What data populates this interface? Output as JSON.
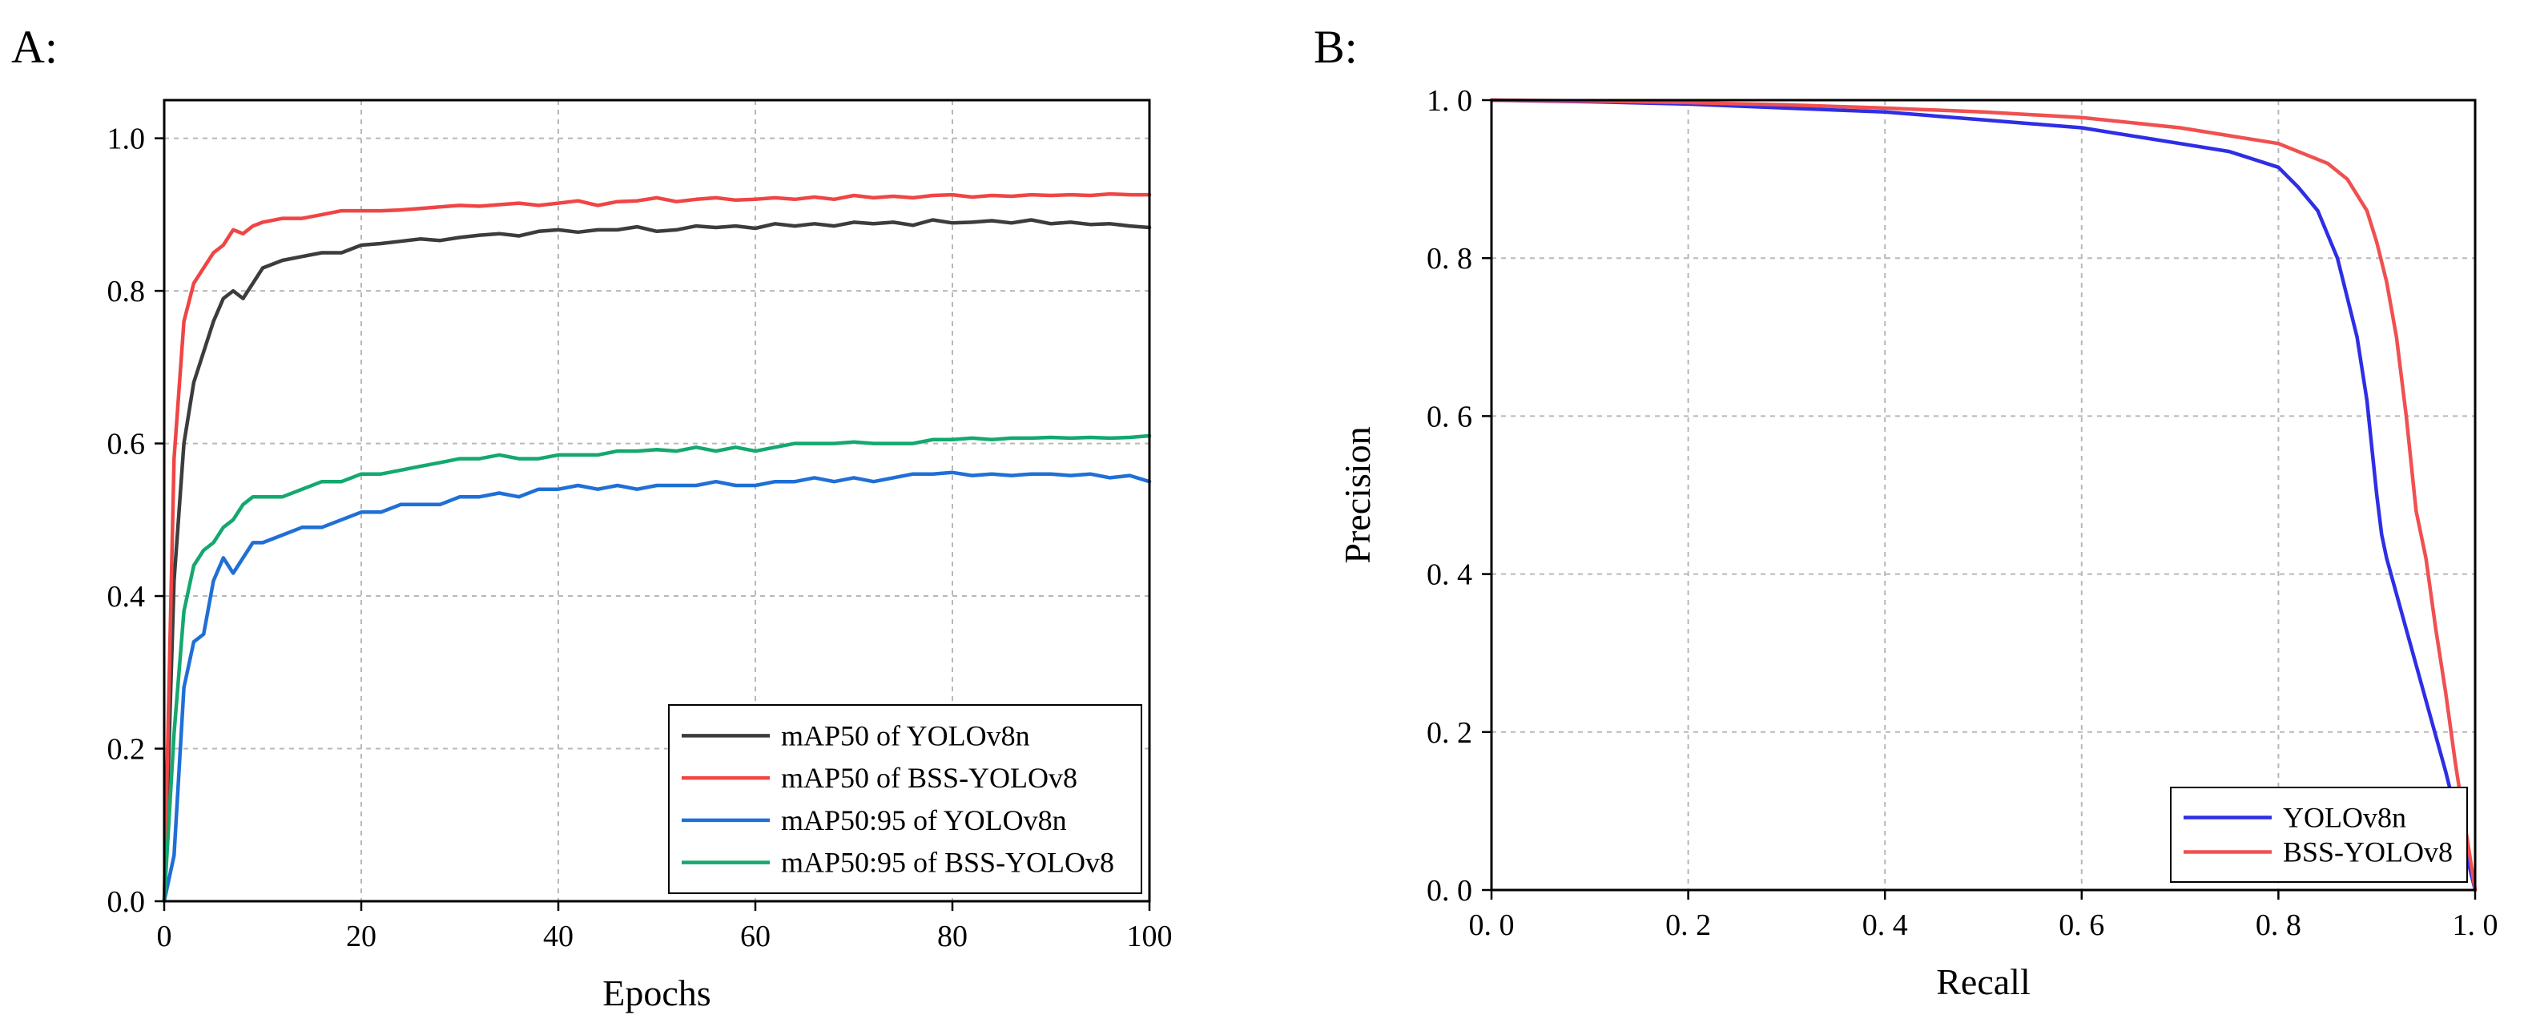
{
  "chart_data": [
    {
      "panel": "A:",
      "type": "line",
      "xlabel": "Epochs",
      "ylabel": "",
      "xlim": [
        0,
        100
      ],
      "ylim": [
        0,
        1.05
      ],
      "xticks": [
        0,
        20,
        40,
        60,
        80,
        100
      ],
      "yticks": [
        0.0,
        0.2,
        0.4,
        0.6,
        0.8,
        1.0
      ],
      "xtick_labels": [
        "0",
        "20",
        "40",
        "60",
        "80",
        "100"
      ],
      "ytick_labels": [
        "0.0",
        "0.2",
        "0.4",
        "0.6",
        "0.8",
        "1.0"
      ],
      "grid": true,
      "legend_position": "bottom-right",
      "series": [
        {
          "name": "mAP50 of YOLOv8n",
          "color": "#3c3c3c",
          "x": [
            0,
            1,
            2,
            3,
            4,
            5,
            6,
            7,
            8,
            9,
            10,
            12,
            14,
            16,
            18,
            20,
            22,
            24,
            26,
            28,
            30,
            32,
            34,
            36,
            38,
            40,
            42,
            44,
            46,
            48,
            50,
            52,
            54,
            56,
            58,
            60,
            62,
            64,
            66,
            68,
            70,
            72,
            74,
            76,
            78,
            80,
            82,
            84,
            86,
            88,
            90,
            92,
            94,
            96,
            98,
            100
          ],
          "y": [
            0.0,
            0.42,
            0.6,
            0.68,
            0.72,
            0.76,
            0.79,
            0.8,
            0.79,
            0.81,
            0.83,
            0.84,
            0.845,
            0.85,
            0.85,
            0.86,
            0.862,
            0.865,
            0.868,
            0.866,
            0.87,
            0.873,
            0.875,
            0.872,
            0.878,
            0.88,
            0.877,
            0.88,
            0.88,
            0.884,
            0.878,
            0.88,
            0.885,
            0.883,
            0.885,
            0.882,
            0.888,
            0.885,
            0.888,
            0.885,
            0.89,
            0.888,
            0.89,
            0.886,
            0.893,
            0.889,
            0.89,
            0.892,
            0.889,
            0.893,
            0.888,
            0.89,
            0.887,
            0.888,
            0.885,
            0.883
          ]
        },
        {
          "name": "mAP50 of BSS-YOLOv8",
          "color": "#f04545",
          "x": [
            0,
            1,
            2,
            3,
            4,
            5,
            6,
            7,
            8,
            9,
            10,
            12,
            14,
            16,
            18,
            20,
            22,
            24,
            26,
            28,
            30,
            32,
            34,
            36,
            38,
            40,
            42,
            44,
            46,
            48,
            50,
            52,
            54,
            56,
            58,
            60,
            62,
            64,
            66,
            68,
            70,
            72,
            74,
            76,
            78,
            80,
            82,
            84,
            86,
            88,
            90,
            92,
            94,
            96,
            98,
            100
          ],
          "y": [
            0.0,
            0.58,
            0.76,
            0.81,
            0.83,
            0.85,
            0.86,
            0.88,
            0.875,
            0.885,
            0.89,
            0.895,
            0.895,
            0.9,
            0.905,
            0.905,
            0.905,
            0.906,
            0.908,
            0.91,
            0.912,
            0.911,
            0.913,
            0.915,
            0.912,
            0.915,
            0.918,
            0.912,
            0.917,
            0.918,
            0.922,
            0.917,
            0.92,
            0.922,
            0.919,
            0.92,
            0.922,
            0.92,
            0.923,
            0.92,
            0.925,
            0.922,
            0.924,
            0.922,
            0.925,
            0.926,
            0.923,
            0.925,
            0.924,
            0.926,
            0.925,
            0.926,
            0.925,
            0.927,
            0.926,
            0.926
          ]
        },
        {
          "name": "mAP50:95 of YOLOv8n",
          "color": "#1f6fd6",
          "x": [
            0,
            1,
            2,
            3,
            4,
            5,
            6,
            7,
            8,
            9,
            10,
            12,
            14,
            16,
            18,
            20,
            22,
            24,
            26,
            28,
            30,
            32,
            34,
            36,
            38,
            40,
            42,
            44,
            46,
            48,
            50,
            52,
            54,
            56,
            58,
            60,
            62,
            64,
            66,
            68,
            70,
            72,
            74,
            76,
            78,
            80,
            82,
            84,
            86,
            88,
            90,
            92,
            94,
            96,
            98,
            100
          ],
          "y": [
            0.0,
            0.06,
            0.28,
            0.34,
            0.35,
            0.42,
            0.45,
            0.43,
            0.45,
            0.47,
            0.47,
            0.48,
            0.49,
            0.49,
            0.5,
            0.51,
            0.51,
            0.52,
            0.52,
            0.52,
            0.53,
            0.53,
            0.535,
            0.53,
            0.54,
            0.54,
            0.545,
            0.54,
            0.545,
            0.54,
            0.545,
            0.545,
            0.545,
            0.55,
            0.545,
            0.545,
            0.55,
            0.55,
            0.555,
            0.55,
            0.555,
            0.55,
            0.555,
            0.56,
            0.56,
            0.562,
            0.558,
            0.56,
            0.558,
            0.56,
            0.56,
            0.558,
            0.56,
            0.555,
            0.558,
            0.55
          ]
        },
        {
          "name": "mAP50:95 of BSS-YOLOv8",
          "color": "#14a870",
          "x": [
            0,
            1,
            2,
            3,
            4,
            5,
            6,
            7,
            8,
            9,
            10,
            12,
            14,
            16,
            18,
            20,
            22,
            24,
            26,
            28,
            30,
            32,
            34,
            36,
            38,
            40,
            42,
            44,
            46,
            48,
            50,
            52,
            54,
            56,
            58,
            60,
            62,
            64,
            66,
            68,
            70,
            72,
            74,
            76,
            78,
            80,
            82,
            84,
            86,
            88,
            90,
            92,
            94,
            96,
            98,
            100
          ],
          "y": [
            0.0,
            0.22,
            0.38,
            0.44,
            0.46,
            0.47,
            0.49,
            0.5,
            0.52,
            0.53,
            0.53,
            0.53,
            0.54,
            0.55,
            0.55,
            0.56,
            0.56,
            0.565,
            0.57,
            0.575,
            0.58,
            0.58,
            0.585,
            0.58,
            0.58,
            0.585,
            0.585,
            0.585,
            0.59,
            0.59,
            0.592,
            0.59,
            0.595,
            0.59,
            0.595,
            0.59,
            0.595,
            0.6,
            0.6,
            0.6,
            0.602,
            0.6,
            0.6,
            0.6,
            0.605,
            0.605,
            0.607,
            0.605,
            0.607,
            0.607,
            0.608,
            0.607,
            0.608,
            0.607,
            0.608,
            0.61
          ]
        }
      ]
    },
    {
      "panel": "B:",
      "type": "line",
      "xlabel": "Recall",
      "ylabel": "Precision",
      "xlim": [
        0,
        1
      ],
      "ylim": [
        0,
        1
      ],
      "xticks": [
        0.0,
        0.2,
        0.4,
        0.6,
        0.8,
        1.0
      ],
      "yticks": [
        0.0,
        0.2,
        0.4,
        0.6,
        0.8,
        1.0
      ],
      "xtick_labels": [
        "0. 0",
        "0. 2",
        "0. 4",
        "0. 6",
        "0. 8",
        "1. 0"
      ],
      "ytick_labels": [
        "0. 0",
        "0. 2",
        "0. 4",
        "0. 6",
        "0. 8",
        "1. 0"
      ],
      "grid": true,
      "legend_position": "bottom-right",
      "series": [
        {
          "name": "YOLOv8n",
          "color": "#2e2ee6",
          "x": [
            0.0,
            0.1,
            0.2,
            0.3,
            0.4,
            0.5,
            0.6,
            0.7,
            0.75,
            0.8,
            0.82,
            0.84,
            0.86,
            0.87,
            0.88,
            0.89,
            0.9,
            0.905,
            0.91,
            0.93,
            0.95,
            0.97,
            0.99,
            1.0
          ],
          "y": [
            1.0,
            0.998,
            0.995,
            0.99,
            0.985,
            0.975,
            0.965,
            0.945,
            0.935,
            0.915,
            0.89,
            0.86,
            0.8,
            0.75,
            0.7,
            0.62,
            0.5,
            0.45,
            0.42,
            0.33,
            0.24,
            0.15,
            0.05,
            0.0
          ]
        },
        {
          "name": "BSS-YOLOv8",
          "color": "#f05050",
          "x": [
            0.0,
            0.1,
            0.2,
            0.3,
            0.4,
            0.5,
            0.6,
            0.7,
            0.75,
            0.8,
            0.85,
            0.87,
            0.89,
            0.9,
            0.91,
            0.92,
            0.93,
            0.94,
            0.95,
            0.96,
            0.97,
            0.98,
            0.99,
            1.0
          ],
          "y": [
            1.0,
            0.999,
            0.997,
            0.994,
            0.99,
            0.985,
            0.978,
            0.965,
            0.955,
            0.945,
            0.92,
            0.9,
            0.86,
            0.82,
            0.77,
            0.7,
            0.6,
            0.48,
            0.42,
            0.33,
            0.25,
            0.16,
            0.08,
            0.0
          ]
        }
      ]
    }
  ]
}
